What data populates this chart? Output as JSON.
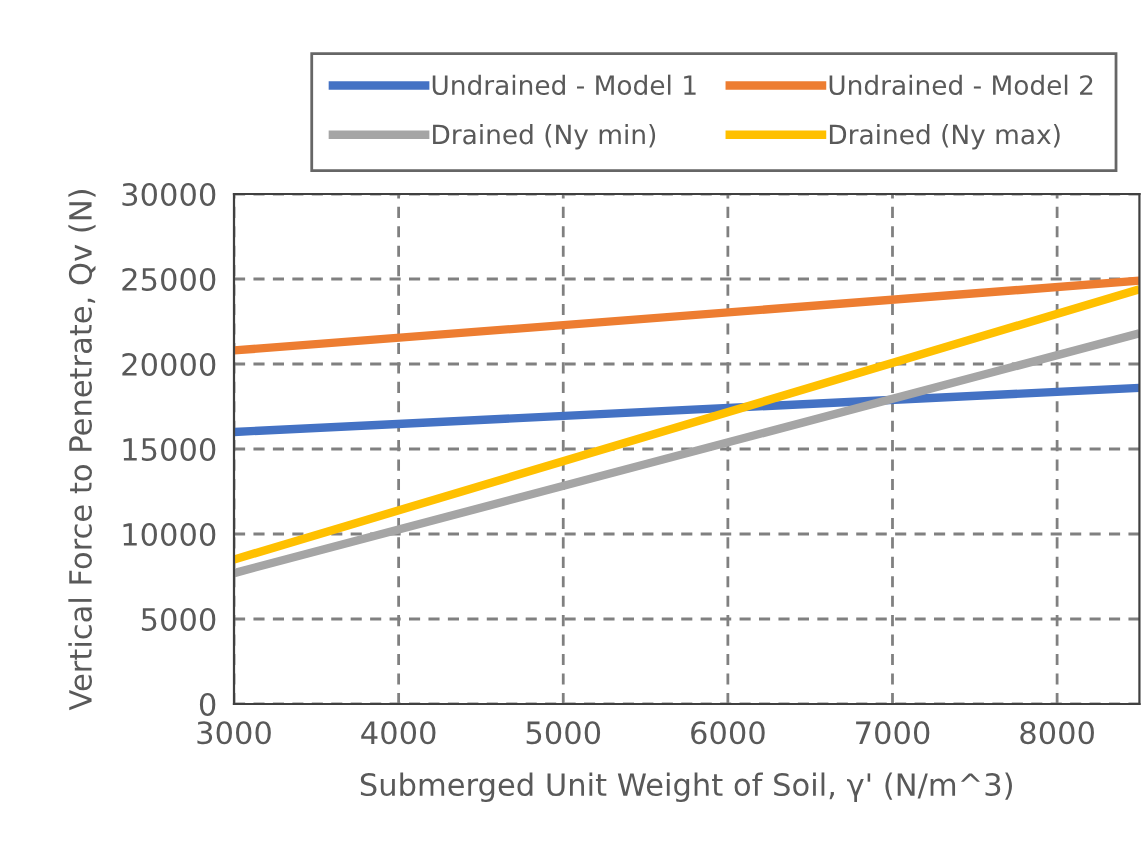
{
  "chart_data": {
    "type": "line",
    "xlabel": "Submerged Unit Weight of Soil, γ' (N/m^3)",
    "ylabel": "Vertical Force to Penetrate, Qv (N)",
    "x": [
      3000,
      8500
    ],
    "series": [
      {
        "name": "Undrained - Model 1",
        "color": "#4472c4",
        "values": [
          16000,
          18600
        ]
      },
      {
        "name": "Undrained - Model 2",
        "color": "#ed7d31",
        "values": [
          20800,
          24900
        ]
      },
      {
        "name": "Drained (Ny min)",
        "color": "#a5a5a5",
        "values": [
          7700,
          21800
        ]
      },
      {
        "name": "Drained (Ny max)",
        "color": "#ffc000",
        "values": [
          8500,
          24400
        ]
      }
    ],
    "xlim": [
      3000,
      8500
    ],
    "xticks": [
      3000,
      4000,
      5000,
      6000,
      7000,
      8000
    ],
    "ylim": [
      0,
      30000
    ],
    "yticks": [
      0,
      5000,
      10000,
      15000,
      20000,
      25000,
      30000
    ],
    "grid": true,
    "legend": "top",
    "marker": "none",
    "line_style": "solid"
  }
}
